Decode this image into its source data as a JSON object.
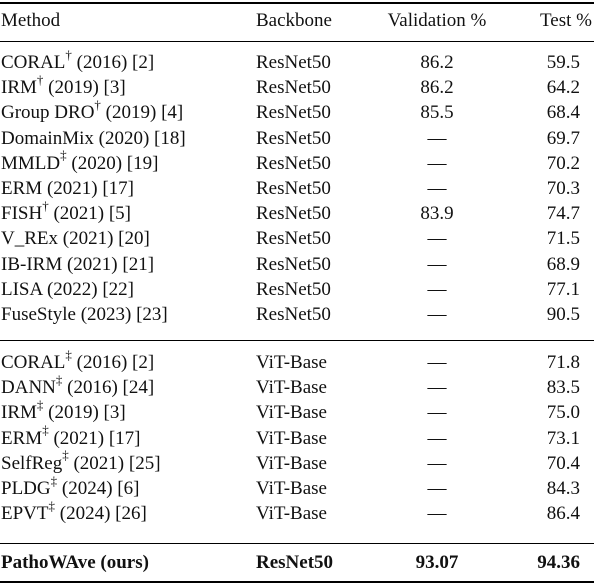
{
  "headers": {
    "method": "Method",
    "backbone": "Backbone",
    "validation": "Validation %",
    "test": "Test %"
  },
  "groups": [
    {
      "rows": [
        {
          "name": "CORAL",
          "mark": "†",
          "detail": " (2016) [2]",
          "backbone": "ResNet50",
          "validation": "86.2",
          "test": "59.5"
        },
        {
          "name": "IRM",
          "mark": "†",
          "detail": " (2019) [3]",
          "backbone": "ResNet50",
          "validation": "86.2",
          "test": "64.2"
        },
        {
          "name": "Group DRO",
          "mark": "†",
          "detail": " (2019) [4]",
          "backbone": "ResNet50",
          "validation": "85.5",
          "test": "68.4"
        },
        {
          "name": "DomainMix",
          "mark": "",
          "detail": " (2020) [18]",
          "backbone": "ResNet50",
          "validation": "—",
          "test": "69.7"
        },
        {
          "name": "MMLD",
          "mark": "‡",
          "detail": " (2020) [19]",
          "backbone": "ResNet50",
          "validation": "—",
          "test": "70.2"
        },
        {
          "name": "ERM",
          "mark": "",
          "detail": " (2021) [17]",
          "backbone": "ResNet50",
          "validation": "—",
          "test": "70.3"
        },
        {
          "name": "FISH",
          "mark": "†",
          "detail": " (2021) [5]",
          "backbone": "ResNet50",
          "validation": "83.9",
          "test": "74.7"
        },
        {
          "name": "V_REx",
          "mark": "",
          "detail": " (2021) [20]",
          "backbone": "ResNet50",
          "validation": "—",
          "test": "71.5"
        },
        {
          "name": "IB-IRM",
          "mark": "",
          "detail": " (2021) [21]",
          "backbone": "ResNet50",
          "validation": "—",
          "test": "68.9"
        },
        {
          "name": "LISA",
          "mark": "",
          "detail": " (2022) [22]",
          "backbone": "ResNet50",
          "validation": "—",
          "test": "77.1"
        },
        {
          "name": "FuseStyle",
          "mark": "",
          "detail": " (2023) [23]",
          "backbone": "ResNet50",
          "validation": "—",
          "test": "90.5"
        }
      ]
    },
    {
      "rows": [
        {
          "name": "CORAL",
          "mark": "‡",
          "detail": " (2016) [2]",
          "backbone": "ViT-Base",
          "validation": "—",
          "test": "71.8"
        },
        {
          "name": "DANN",
          "mark": "‡",
          "detail": " (2016) [24]",
          "backbone": "ViT-Base",
          "validation": "—",
          "test": "83.5"
        },
        {
          "name": "IRM",
          "mark": "‡",
          "detail": " (2019) [3]",
          "backbone": "ViT-Base",
          "validation": "—",
          "test": "75.0"
        },
        {
          "name": "ERM",
          "mark": "‡",
          "detail": " (2021) [17]",
          "backbone": "ViT-Base",
          "validation": "—",
          "test": "73.1"
        },
        {
          "name": "SelfReg",
          "mark": "‡",
          "detail": " (2021) [25]",
          "backbone": "ViT-Base",
          "validation": "—",
          "test": "70.4"
        },
        {
          "name": "PLDG",
          "mark": "‡",
          "detail": " (2024) [6]",
          "backbone": "ViT-Base",
          "validation": "—",
          "test": "84.3"
        },
        {
          "name": "EPVT",
          "mark": "‡",
          "detail": " (2024) [26]",
          "backbone": "ViT-Base",
          "validation": "—",
          "test": "86.4"
        }
      ]
    }
  ],
  "ours": {
    "name": "PathoWAve (ours)",
    "backbone": "ResNet50",
    "validation": "93.07",
    "test": "94.36"
  }
}
